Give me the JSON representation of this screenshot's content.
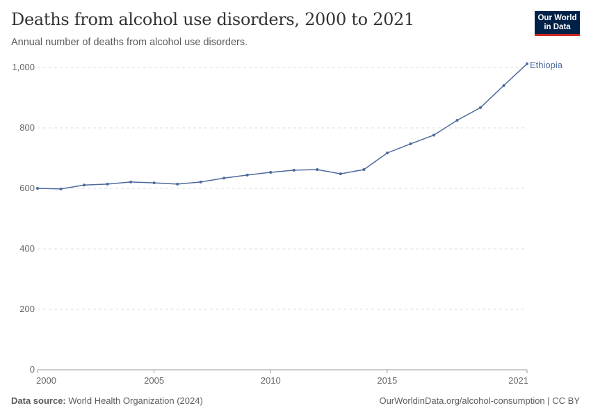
{
  "header": {
    "title": "Deaths from alcohol use disorders, 2000 to 2021",
    "subtitle": "Annual number of deaths from alcohol use disorders.",
    "logo_text": "Our World in Data"
  },
  "footer": {
    "source_label": "Data source:",
    "source": "World Health Organization (2024)",
    "url_license": "OurWorldinData.org/alcohol-consumption | CC BY"
  },
  "chart_data": {
    "type": "line",
    "title": "Deaths from alcohol use disorders, 2000 to 2021",
    "subtitle": "Annual number of deaths from alcohol use disorders.",
    "x": [
      2000,
      2001,
      2002,
      2003,
      2004,
      2005,
      2006,
      2007,
      2008,
      2009,
      2010,
      2011,
      2012,
      2013,
      2014,
      2015,
      2016,
      2017,
      2018,
      2019,
      2020,
      2021
    ],
    "series": [
      {
        "name": "Ethiopia",
        "color": "#4c6a9c",
        "values": [
          600,
          598,
          611,
          614,
          621,
          618,
          614,
          621,
          634,
          644,
          653,
          660,
          662,
          648,
          662,
          717,
          747,
          776,
          825,
          867,
          940,
          1012
        ]
      }
    ],
    "xlim": [
      2000,
      2021
    ],
    "ylim": [
      0,
      1000
    ],
    "x_ticks": [
      "2000",
      "2005",
      "2010",
      "2015",
      "2021"
    ],
    "y_ticks": [
      "0",
      "200",
      "400",
      "600",
      "800",
      "1,000"
    ],
    "grid": "horizontal dashed",
    "legend": "line-end label"
  }
}
